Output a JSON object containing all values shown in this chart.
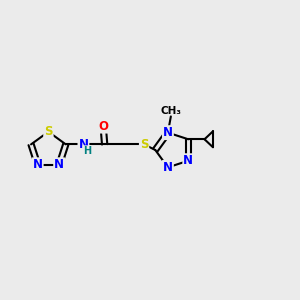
{
  "background_color": "#ebebeb",
  "line_color": "#000000",
  "bond_width": 1.5,
  "atom_colors": {
    "N": "#0000ff",
    "S": "#cccc00",
    "O": "#ff0000",
    "C": "#000000",
    "H": "#008080"
  },
  "font_size": 8.5,
  "fig_width": 3.0,
  "fig_height": 3.0,
  "dpi": 100
}
